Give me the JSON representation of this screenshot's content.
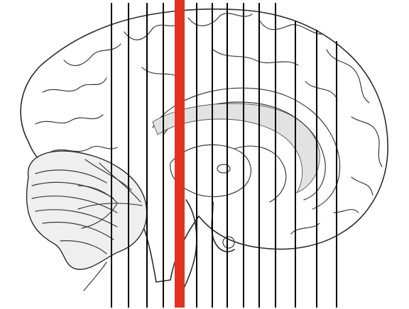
{
  "figure": {
    "subject": "brain-sagittal-section",
    "slice_line_color": "#000000",
    "highlight_line_color": "#e0321f",
    "slice_line_count": 14,
    "highlighted_slice_index": 4
  }
}
